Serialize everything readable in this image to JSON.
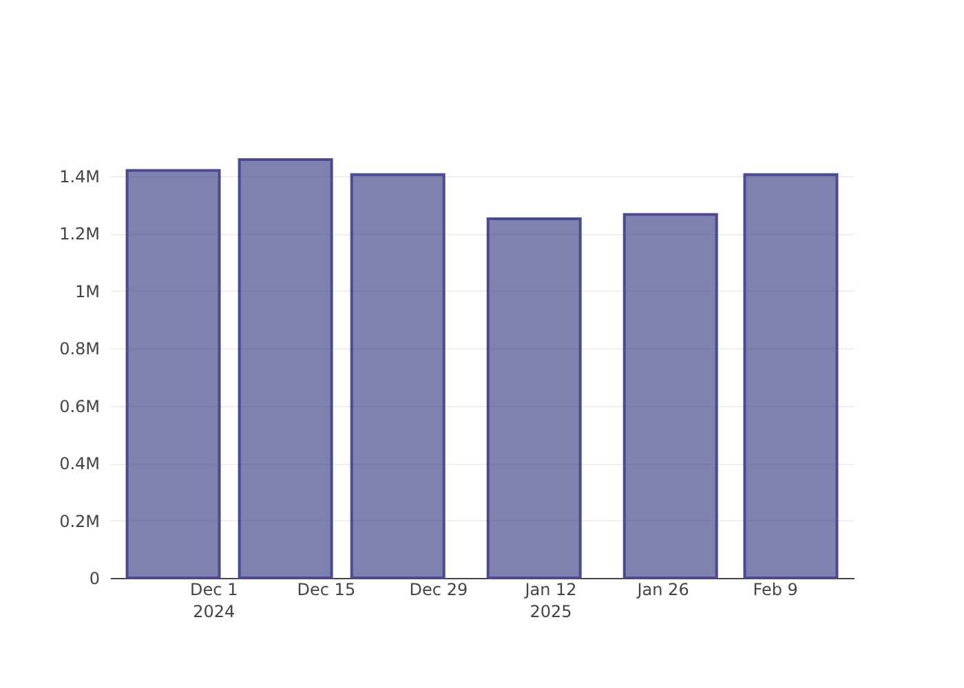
{
  "chart_data": {
    "type": "bar",
    "x": [
      "2024-11-26",
      "2024-12-10",
      "2024-12-24",
      "2025-01-10",
      "2025-01-27",
      "2025-02-11"
    ],
    "series": [
      {
        "color": "#4b4b8f",
        "values": [
          1419000,
          1457000,
          1405000,
          1251000,
          1266000,
          1405000
        ]
      }
    ],
    "xlim": [
      "2024-11-19",
      "2025-02-18"
    ],
    "xticks": [
      {
        "value": "2024-12-01",
        "label": "Dec 1\n2024"
      },
      {
        "value": "2024-12-15",
        "label": "Dec 15"
      },
      {
        "value": "2024-12-29",
        "label": "Dec 29"
      },
      {
        "value": "2025-01-12",
        "label": "Jan 12\n2025"
      },
      {
        "value": "2025-01-26",
        "label": "Jan 26"
      },
      {
        "value": "2025-02-09",
        "label": "Feb 9"
      }
    ],
    "ylim": [
      0,
      1457000
    ],
    "yticks": [
      {
        "value": 0,
        "label": "0"
      },
      {
        "value": 200000,
        "label": "0.2M"
      },
      {
        "value": 400000,
        "label": "0.4M"
      },
      {
        "value": 600000,
        "label": "0.6M"
      },
      {
        "value": 800000,
        "label": "0.8M"
      },
      {
        "value": 1000000,
        "label": "1M"
      },
      {
        "value": 1200000,
        "label": "1.2M"
      },
      {
        "value": 1400000,
        "label": "1.4M"
      }
    ],
    "grid": "y"
  }
}
